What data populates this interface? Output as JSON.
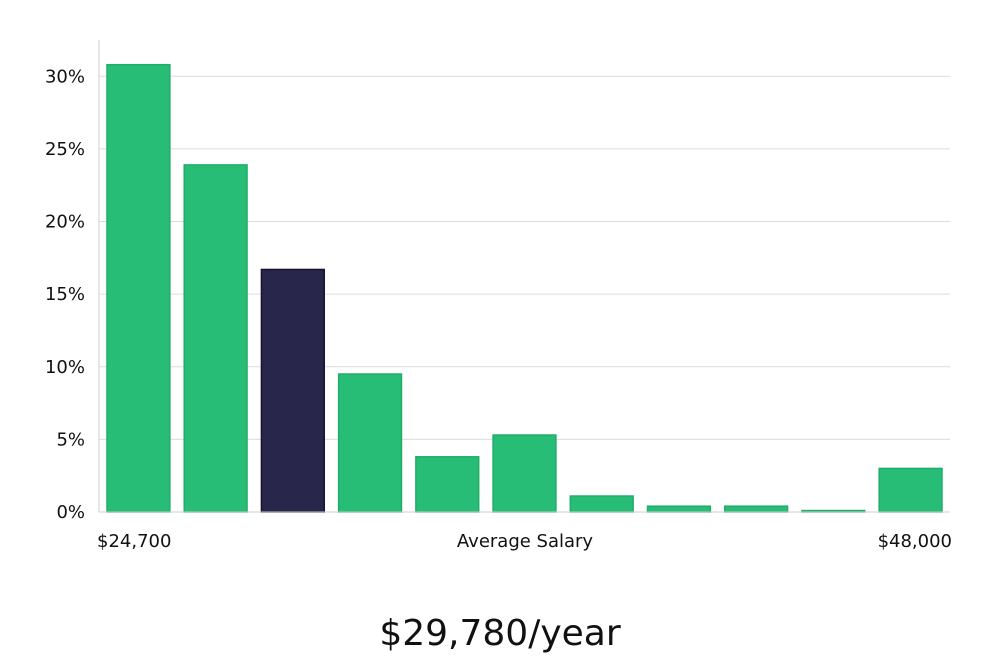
{
  "chart_data": {
    "type": "bar",
    "title": "",
    "xlabel": "Average Salary",
    "ylabel": "",
    "x_range_labels": {
      "min": "$24,700",
      "max": "$48,000"
    },
    "categories": [
      "bin-1",
      "bin-2",
      "bin-3",
      "bin-4",
      "bin-5",
      "bin-6",
      "bin-7",
      "bin-8",
      "bin-9",
      "bin-10",
      "bin-11"
    ],
    "values": [
      30.8,
      23.9,
      16.7,
      9.5,
      3.8,
      5.3,
      1.1,
      0.4,
      0.4,
      0.1,
      3.0
    ],
    "highlight_index": 2,
    "ylim": [
      0,
      32.5
    ],
    "yticks": [
      0,
      5,
      10,
      15,
      20,
      25,
      30
    ],
    "ytick_labels": [
      "0%",
      "5%",
      "10%",
      "15%",
      "20%",
      "25%",
      "30%"
    ],
    "grid": true,
    "colors": {
      "bar": "#28bd76",
      "bar_border": "#1fae68",
      "highlight": "#28264a",
      "highlight_border": "#151433",
      "grid": "#dcdcdc",
      "axis": "#cfcfcf"
    }
  },
  "headline": "$29,780/year"
}
